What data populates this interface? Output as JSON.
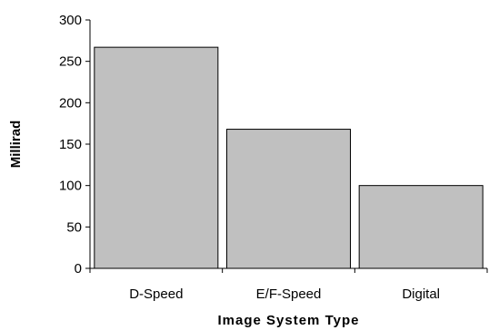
{
  "chart_data": {
    "type": "bar",
    "categories": [
      "D-Speed",
      "E/F-Speed",
      "Digital"
    ],
    "values": [
      267,
      168,
      100
    ],
    "title": "",
    "xlabel": "Image System Type",
    "ylabel": "Millirad",
    "ylim": [
      0,
      300
    ],
    "yticks": [
      0,
      50,
      100,
      150,
      200,
      250,
      300
    ],
    "grid": false,
    "legend": "none",
    "bar_color": "#c0c0c0",
    "bar_edge_color": "#000000"
  }
}
